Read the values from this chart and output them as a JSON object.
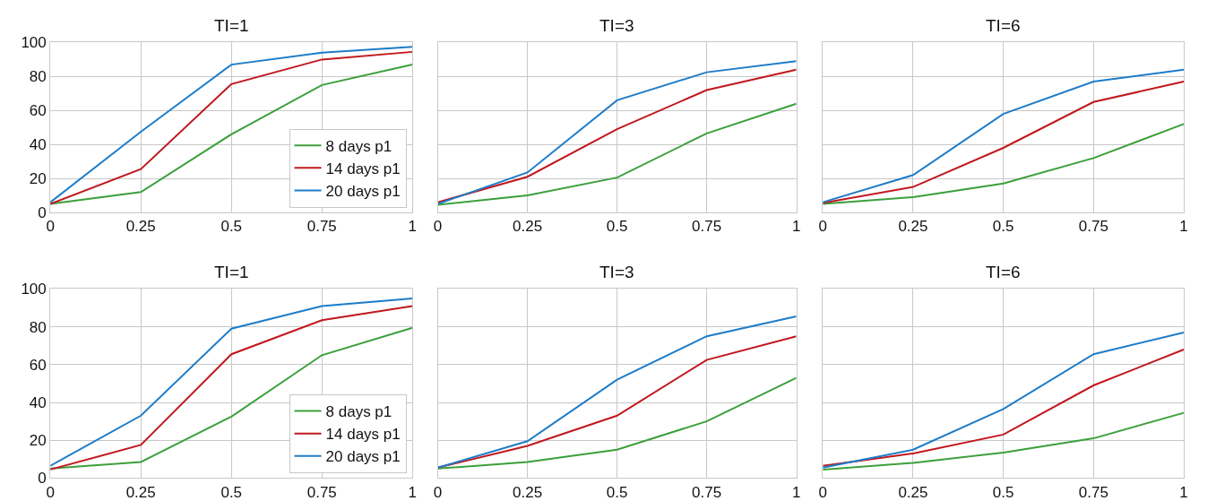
{
  "chart_data": [
    {
      "type": "line",
      "title": "TI=1",
      "x": [
        0,
        0.25,
        0.5,
        0.75,
        1
      ],
      "xlim": [
        0,
        1
      ],
      "xticks": [
        0,
        0.25,
        0.5,
        0.75,
        1
      ],
      "ylim": [
        0,
        100
      ],
      "yticks": [
        0,
        20,
        40,
        60,
        80,
        100
      ],
      "grid": true,
      "legend": "bottom right",
      "marker": "none",
      "line_style": "solid",
      "series": [
        {
          "name": "8 days p1",
          "color": "#3c9f3c",
          "values": [
            5,
            12,
            46,
            75,
            87
          ]
        },
        {
          "name": "14 days p1",
          "color": "#c0181e",
          "values": [
            5,
            25.5,
            75.5,
            90,
            94.5
          ]
        },
        {
          "name": "20 days p1",
          "color": "#1e7cc8",
          "values": [
            6,
            47.5,
            87,
            94,
            97.5
          ]
        }
      ]
    },
    {
      "type": "line",
      "title": "TI=3",
      "x": [
        0,
        0.25,
        0.5,
        0.75,
        1
      ],
      "xlim": [
        0,
        1
      ],
      "xticks": [
        0,
        0.25,
        0.5,
        0.75,
        1
      ],
      "ylim": [
        0,
        100
      ],
      "yticks": [
        0,
        20,
        40,
        60,
        80,
        100
      ],
      "grid": true,
      "tick_labels": "x",
      "marker": "none",
      "line_style": "solid",
      "series": [
        {
          "color": "#3c9f3c",
          "values": [
            4.5,
            10,
            20.5,
            46.5,
            64
          ]
        },
        {
          "color": "#c0181e",
          "values": [
            6,
            21,
            49,
            72,
            84
          ]
        },
        {
          "color": "#1e7cc8",
          "values": [
            5,
            23.5,
            66,
            82.5,
            89
          ]
        }
      ]
    },
    {
      "type": "line",
      "title": "TI=6",
      "x": [
        0,
        0.25,
        0.5,
        0.75,
        1
      ],
      "xlim": [
        0,
        1
      ],
      "xticks": [
        0,
        0.25,
        0.5,
        0.75,
        1
      ],
      "ylim": [
        0,
        100
      ],
      "yticks": [
        0,
        20,
        40,
        60,
        80,
        100
      ],
      "grid": true,
      "tick_labels": "x",
      "marker": "none",
      "line_style": "solid",
      "series": [
        {
          "color": "#3c9f3c",
          "values": [
            5,
            9,
            17,
            32,
            52
          ]
        },
        {
          "color": "#c0181e",
          "values": [
            5.5,
            15,
            38,
            65,
            77
          ]
        },
        {
          "color": "#1e7cc8",
          "values": [
            6,
            22,
            58,
            77,
            84
          ]
        }
      ]
    },
    {
      "type": "line",
      "title": "TI=1",
      "x": [
        0,
        0.25,
        0.5,
        0.75,
        1
      ],
      "xlim": [
        0,
        1
      ],
      "xticks": [
        0,
        0.25,
        0.5,
        0.75,
        1
      ],
      "ylim": [
        0,
        100
      ],
      "yticks": [
        0,
        20,
        40,
        60,
        80,
        100
      ],
      "grid": true,
      "legend": "bottom right",
      "marker": "none",
      "line_style": "solid",
      "series": [
        {
          "name": "8 days p1",
          "color": "#3c9f3c",
          "values": [
            5,
            8.5,
            32.5,
            65,
            79.5
          ]
        },
        {
          "name": "14 days p1",
          "color": "#c0181e",
          "values": [
            4.5,
            17.5,
            65.5,
            83.5,
            91
          ]
        },
        {
          "name": "20 days p1",
          "color": "#1e7cc8",
          "values": [
            6.5,
            33,
            79,
            91,
            95
          ]
        }
      ]
    },
    {
      "type": "line",
      "title": "TI=3",
      "x": [
        0,
        0.25,
        0.5,
        0.75,
        1
      ],
      "xlim": [
        0,
        1
      ],
      "xticks": [
        0,
        0.25,
        0.5,
        0.75,
        1
      ],
      "ylim": [
        0,
        100
      ],
      "yticks": [
        0,
        20,
        40,
        60,
        80,
        100
      ],
      "grid": true,
      "tick_labels": "x",
      "marker": "none",
      "line_style": "solid",
      "series": [
        {
          "color": "#3c9f3c",
          "values": [
            5,
            8.5,
            15,
            30,
            53
          ]
        },
        {
          "color": "#c0181e",
          "values": [
            5.5,
            17,
            33,
            62.5,
            75
          ]
        },
        {
          "color": "#1e7cc8",
          "values": [
            5.5,
            19.5,
            52,
            75,
            85.5
          ]
        }
      ]
    },
    {
      "type": "line",
      "title": "TI=6",
      "x": [
        0,
        0.25,
        0.5,
        0.75,
        1
      ],
      "xlim": [
        0,
        1
      ],
      "xticks": [
        0,
        0.25,
        0.5,
        0.75,
        1
      ],
      "ylim": [
        0,
        100
      ],
      "yticks": [
        0,
        20,
        40,
        60,
        80,
        100
      ],
      "grid": true,
      "tick_labels": "x",
      "marker": "none",
      "line_style": "solid",
      "series": [
        {
          "color": "#3c9f3c",
          "values": [
            4.5,
            8,
            13.5,
            21,
            34.5
          ]
        },
        {
          "color": "#c0181e",
          "values": [
            6.5,
            13,
            23,
            49,
            68
          ]
        },
        {
          "color": "#1e7cc8",
          "values": [
            5.5,
            15,
            36.5,
            65.5,
            77
          ]
        }
      ]
    }
  ]
}
